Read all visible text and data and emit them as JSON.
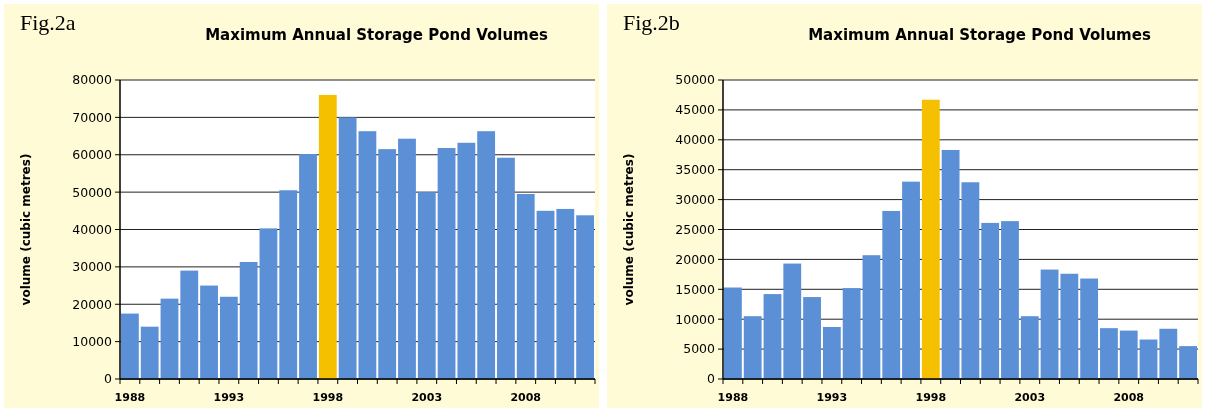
{
  "chart_data": [
    {
      "type": "bar",
      "title": "Maximum Annual Storage Pond Volumes",
      "annotations": [
        "Fig.2a"
      ],
      "ylabel": "volume (cubic  metres)",
      "categories": [
        "1988",
        null,
        null,
        null,
        null,
        "1993",
        null,
        null,
        null,
        null,
        "1998",
        null,
        null,
        null,
        null,
        "2003",
        null,
        null,
        null,
        null,
        "2008",
        null,
        null,
        null
      ],
      "values": [
        17500,
        14000,
        21500,
        29000,
        25000,
        22000,
        31300,
        40300,
        50500,
        60200,
        76000,
        70000,
        66300,
        61500,
        64300,
        50000,
        61800,
        63200,
        66300,
        59200,
        49500,
        45000,
        45500,
        43800
      ],
      "colors": [
        "#5b8fd6",
        "#5b8fd6",
        "#5b8fd6",
        "#5b8fd6",
        "#5b8fd6",
        "#5b8fd6",
        "#5b8fd6",
        "#5b8fd6",
        "#5b8fd6",
        "#5b8fd6",
        "#f5c000",
        "#5b8fd6",
        "#5b8fd6",
        "#5b8fd6",
        "#5b8fd6",
        "#5b8fd6",
        "#5b8fd6",
        "#5b8fd6",
        "#5b8fd6",
        "#5b8fd6",
        "#5b8fd6",
        "#5b8fd6",
        "#5b8fd6",
        "#5b8fd6"
      ],
      "ylim": [
        0,
        80000
      ],
      "yticks": [
        0,
        10000,
        20000,
        30000,
        40000,
        50000,
        60000,
        70000,
        80000
      ],
      "grid": "y"
    },
    {
      "type": "bar",
      "title": "Maximum Annual Storage Pond Volumes",
      "annotations": [
        "Fig.2b"
      ],
      "ylabel": "volume (cubic  metres)",
      "categories": [
        "1988",
        null,
        null,
        null,
        null,
        "1993",
        null,
        null,
        null,
        null,
        "1998",
        null,
        null,
        null,
        null,
        "2003",
        null,
        null,
        null,
        null,
        "2008",
        null,
        null,
        null
      ],
      "values": [
        15300,
        10500,
        14200,
        19300,
        13700,
        8700,
        15200,
        20700,
        28100,
        33000,
        46700,
        38300,
        32900,
        26100,
        26400,
        10500,
        18300,
        17600,
        16800,
        8500,
        8100,
        6600,
        8400,
        5500
      ],
      "colors": [
        "#5b8fd6",
        "#5b8fd6",
        "#5b8fd6",
        "#5b8fd6",
        "#5b8fd6",
        "#5b8fd6",
        "#5b8fd6",
        "#5b8fd6",
        "#5b8fd6",
        "#5b8fd6",
        "#f5c000",
        "#5b8fd6",
        "#5b8fd6",
        "#5b8fd6",
        "#5b8fd6",
        "#5b8fd6",
        "#5b8fd6",
        "#5b8fd6",
        "#5b8fd6",
        "#5b8fd6",
        "#5b8fd6",
        "#5b8fd6",
        "#5b8fd6",
        "#5b8fd6"
      ],
      "ylim": [
        0,
        50000
      ],
      "yticks": [
        0,
        5000,
        10000,
        15000,
        20000,
        25000,
        30000,
        35000,
        40000,
        45000,
        50000
      ],
      "grid": "y"
    }
  ]
}
